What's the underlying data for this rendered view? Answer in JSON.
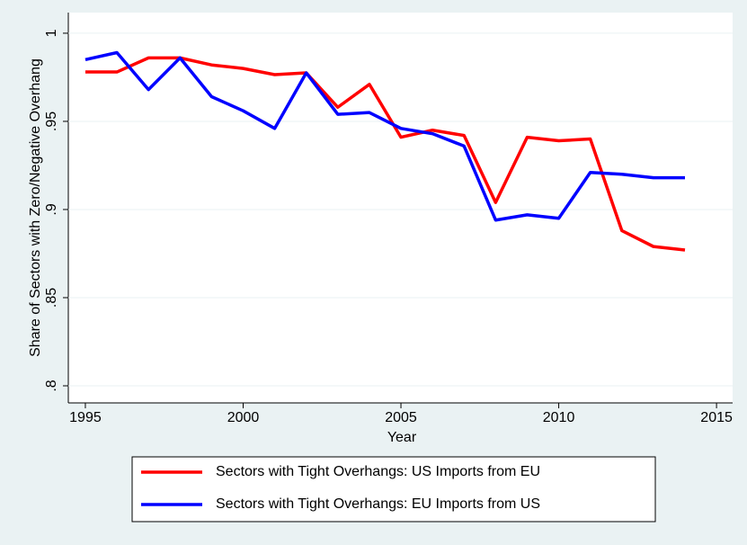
{
  "chart_data": {
    "type": "line",
    "x_label": "Year",
    "y_label": "Share of Sectors with Zero/Negative Overhang",
    "x": [
      1995,
      1996,
      1997,
      1998,
      1999,
      2000,
      2001,
      2002,
      2003,
      2004,
      2005,
      2006,
      2007,
      2008,
      2009,
      2010,
      2011,
      2012,
      2013,
      2014
    ],
    "series": [
      {
        "name": "Sectors with Tight Overhangs: US Imports from EU",
        "color": "#ff0000",
        "values": [
          0.978,
          0.978,
          0.986,
          0.986,
          0.982,
          0.98,
          0.9765,
          0.9775,
          0.958,
          0.971,
          0.941,
          0.945,
          0.942,
          0.904,
          0.941,
          0.939,
          0.94,
          0.888,
          0.879,
          0.877
        ]
      },
      {
        "name": "Sectors with Tight Overhangs: EU Imports from US",
        "color": "#0000ff",
        "values": [
          0.985,
          0.989,
          0.968,
          0.986,
          0.964,
          0.956,
          0.946,
          0.9775,
          0.954,
          0.955,
          0.946,
          0.943,
          0.936,
          0.894,
          0.897,
          0.895,
          0.921,
          0.92,
          0.918,
          0.918
        ]
      }
    ],
    "xlim": [
      1994.46,
      2015.51
    ],
    "xticks": [
      1995,
      2000,
      2005,
      2010,
      2015
    ],
    "ylim": [
      0.7903,
      1.0117
    ],
    "yticks": [
      {
        "value": 0.8,
        "label": ".8"
      },
      {
        "value": 0.85,
        "label": ".85"
      },
      {
        "value": 0.9,
        "label": ".9"
      },
      {
        "value": 0.95,
        "label": ".95"
      },
      1
    ],
    "grid": true,
    "legend": "bottom"
  }
}
